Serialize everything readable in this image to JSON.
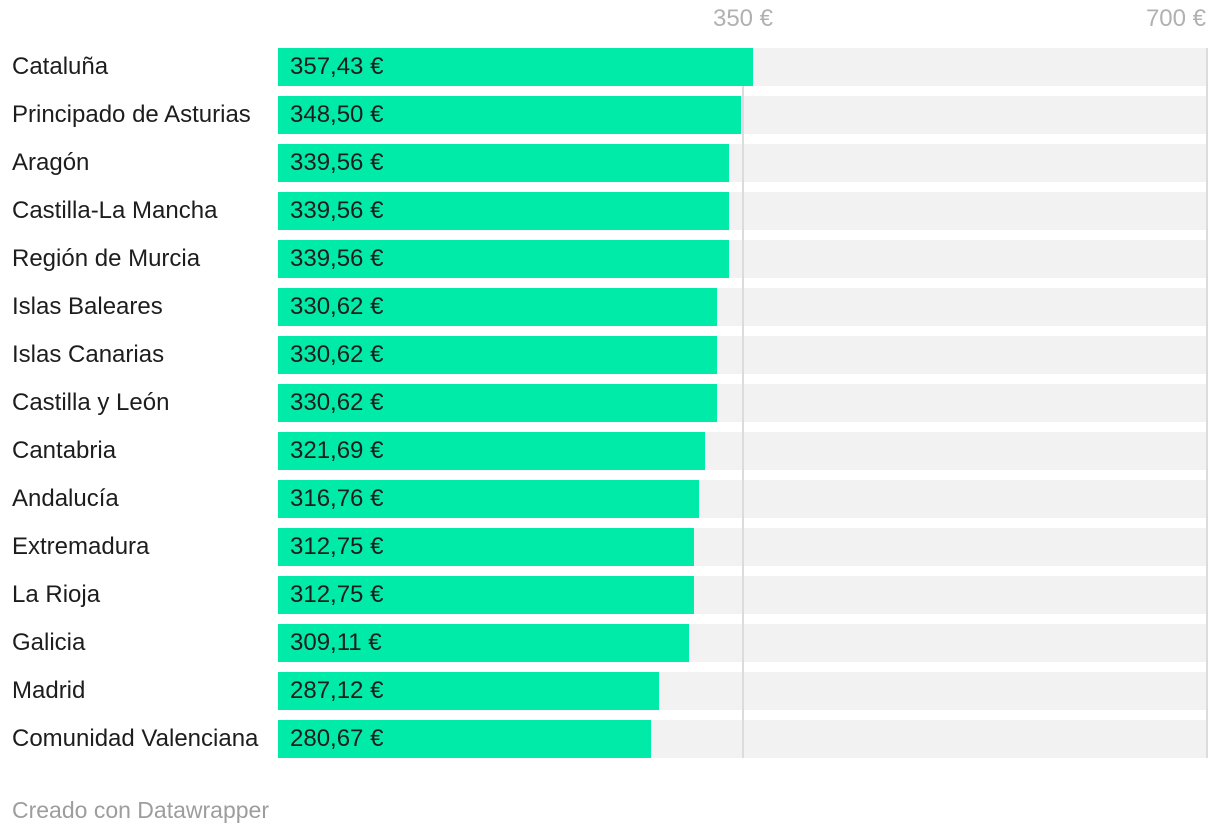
{
  "chart_data": {
    "type": "bar",
    "orientation": "horizontal",
    "title": "",
    "categories": [
      "Cataluña",
      "Principado de Asturias",
      "Aragón",
      "Castilla-La Mancha",
      "Región de Murcia",
      "Islas Baleares",
      "Islas Canarias",
      "Castilla y León",
      "Cantabria",
      "Andalucía",
      "Extremadura",
      "La Rioja",
      "Galicia",
      "Madrid",
      "Comunidad Valenciana"
    ],
    "values": [
      357.43,
      348.5,
      339.56,
      339.56,
      339.56,
      330.62,
      330.62,
      330.62,
      321.69,
      316.76,
      312.75,
      312.75,
      309.11,
      287.12,
      280.67
    ],
    "value_labels": [
      "357,43 €",
      "348,50 €",
      "339,56 €",
      "339,56 €",
      "339,56 €",
      "330,62 €",
      "330,62 €",
      "330,62 €",
      "321,69 €",
      "316,76 €",
      "312,75 €",
      "312,75 €",
      "309,11 €",
      "287,12 €",
      "280,67 €"
    ],
    "xlabel": "",
    "ylabel": "",
    "xlim": [
      0,
      700
    ],
    "ticks": [
      {
        "value": 350,
        "label": "350 €"
      },
      {
        "value": 700,
        "label": "700 €"
      }
    ],
    "grid": "vertical",
    "legend": false
  },
  "colors": {
    "bar": "#00eba8",
    "track": "#f2f2f2",
    "gridline": "#dcdcdc",
    "label_text": "#1d1d1d",
    "value_text": "#1d1d1d",
    "axis_text": "#b1b1b1",
    "footer_text": "#9d9d9d",
    "background": "#ffffff"
  },
  "footer": {
    "text": "Creado con Datawrapper"
  }
}
